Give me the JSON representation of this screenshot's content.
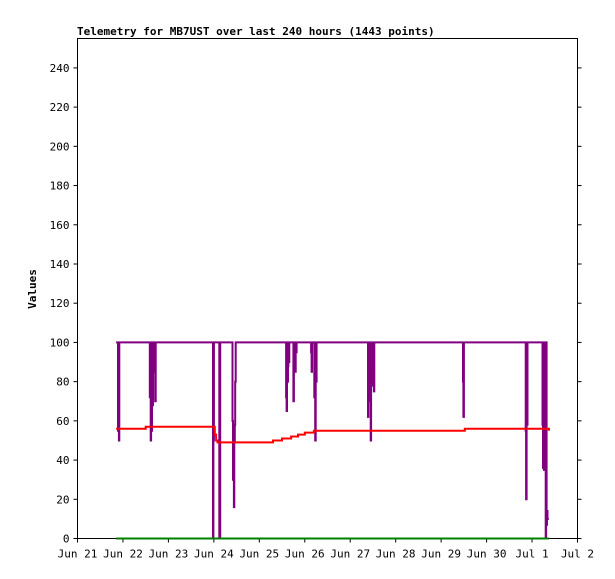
{
  "chart_data": {
    "type": "line",
    "title": "Telemetry for MB7UST over last 240 hours (1443 points)",
    "xlabel": "",
    "ylabel": "Values",
    "ylim": [
      0,
      255
    ],
    "y_ticks": [
      0,
      20,
      40,
      60,
      80,
      100,
      120,
      140,
      160,
      180,
      200,
      220,
      240
    ],
    "xlim": [
      0,
      11
    ],
    "x_ticks": [
      {
        "x": 0,
        "label": "Jun 21"
      },
      {
        "x": 1,
        "label": "Jun 22"
      },
      {
        "x": 2,
        "label": "Jun 23"
      },
      {
        "x": 3,
        "label": "Jun 24"
      },
      {
        "x": 4,
        "label": "Jun 25"
      },
      {
        "x": 5,
        "label": "Jun 26"
      },
      {
        "x": 6,
        "label": "Jun 27"
      },
      {
        "x": 7,
        "label": "Jun 28"
      },
      {
        "x": 8,
        "label": "Jun 29"
      },
      {
        "x": 9,
        "label": "Jun 30"
      },
      {
        "x": 10,
        "label": "Jul 1"
      },
      {
        "x": 11,
        "label": "Jul 2"
      }
    ],
    "grid": false,
    "legend": "none",
    "series": [
      {
        "color": "#800080",
        "x": [
          0.85,
          0.88,
          0.89,
          0.9,
          0.91,
          0.92,
          1.58,
          1.59,
          1.6,
          1.61,
          1.62,
          1.63,
          1.64,
          1.65,
          1.66,
          1.67,
          1.68,
          1.69,
          1.7,
          1.71,
          1.72,
          1.73,
          2.97,
          2.98,
          2.99,
          3.0,
          3.05,
          3.1,
          3.12,
          3.14,
          3.39,
          3.41,
          3.42,
          3.43,
          3.44,
          3.45,
          3.46,
          3.47,
          3.48,
          4.58,
          4.59,
          4.6,
          4.61,
          4.62,
          4.63,
          4.64,
          4.65,
          4.66,
          4.67,
          4.74,
          4.75,
          4.76,
          4.77,
          4.78,
          4.79,
          4.8,
          4.81,
          4.82,
          5.13,
          5.14,
          5.15,
          5.16,
          5.2,
          5.21,
          5.22,
          5.23,
          5.24,
          5.25,
          5.26,
          6.38,
          6.39,
          6.4,
          6.41,
          6.42,
          6.43,
          6.44,
          6.45,
          6.46,
          6.47,
          6.48,
          6.49,
          6.5,
          6.51,
          6.52,
          6.53,
          8.47,
          8.48,
          8.49,
          8.5,
          8.51,
          9.85,
          9.86,
          9.87,
          9.88,
          9.89,
          9.9,
          9.91,
          9.92,
          10.22,
          10.23,
          10.24,
          10.25,
          10.26,
          10.27,
          10.28,
          10.29,
          10.3,
          10.31,
          10.32,
          10.33,
          10.34,
          10.35,
          10.36,
          10.37
        ],
        "values": [
          100,
          100,
          55,
          100,
          50,
          100,
          100,
          72,
          100,
          50,
          100,
          55,
          100,
          68,
          100,
          90,
          100,
          85,
          100,
          70,
          100,
          100,
          100,
          0,
          50,
          100,
          100,
          100,
          0,
          100,
          100,
          60,
          30,
          58,
          16,
          50,
          58,
          80,
          100,
          100,
          72,
          65,
          100,
          80,
          88,
          100,
          90,
          100,
          100,
          100,
          70,
          100,
          90,
          100,
          85,
          100,
          95,
          100,
          100,
          95,
          85,
          100,
          100,
          72,
          85,
          50,
          100,
          80,
          100,
          100,
          62,
          100,
          70,
          85,
          100,
          70,
          50,
          100,
          78,
          80,
          100,
          90,
          100,
          75,
          100,
          100,
          80,
          62,
          100,
          100,
          100,
          55,
          20,
          70,
          58,
          100,
          100,
          100,
          100,
          58,
          36,
          75,
          35,
          100,
          90,
          100,
          0,
          100,
          7,
          14,
          10,
          10,
          10,
          10
        ]
      },
      {
        "color": "#ff0000",
        "x": [
          0.85,
          1.4,
          1.5,
          2.97,
          3.02,
          3.05,
          3.08,
          3.15,
          3.7,
          3.9,
          4.1,
          4.3,
          4.5,
          4.7,
          4.85,
          5.0,
          5.15,
          5.2,
          8.5,
          8.52,
          9.0,
          10.37
        ],
        "values": [
          56,
          56,
          57,
          57,
          53,
          50,
          49,
          49,
          49,
          49,
          49,
          50,
          51,
          52,
          53,
          54,
          54,
          55,
          55,
          56,
          56,
          55
        ]
      },
      {
        "color": "#008000",
        "x": [
          0.85,
          10.37
        ],
        "values": [
          0,
          0
        ]
      }
    ]
  }
}
